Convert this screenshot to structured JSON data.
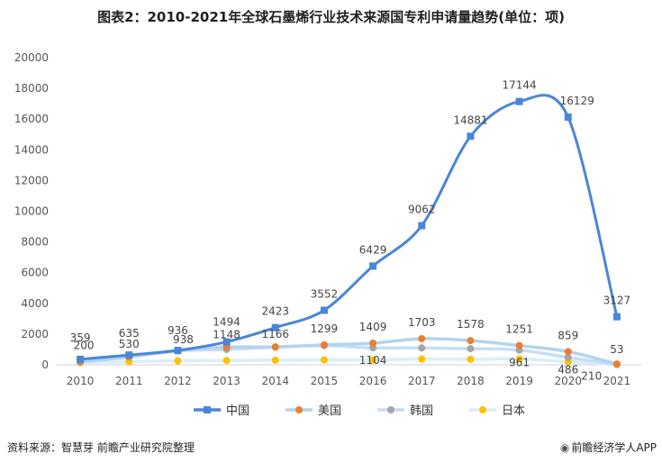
{
  "title": "图表2：2010-2021年全球石墨烯行业技术来源国专利申请量趋势(单位：项)",
  "source": "资料来源：智慧芽 前瞻产业研究院整理",
  "brand": "前瞻经济学人APP",
  "chart_data": {
    "type": "line",
    "title": "图表2：2010-2021年全球石墨烯行业技术来源国专利申请量趋势(单位：项)",
    "xlabel": "",
    "ylabel": "",
    "ylim": [
      0,
      20000
    ],
    "yticks": [
      "0",
      "2000",
      "4000",
      "6000",
      "8000",
      "10000",
      "12000",
      "14000",
      "16000",
      "18000",
      "20000"
    ],
    "categories": [
      "2010",
      "2011",
      "2012",
      "2013",
      "2014",
      "2015",
      "2016",
      "2017",
      "2018",
      "2019",
      "2020",
      "2021"
    ],
    "legend_position": "bottom",
    "grid": false,
    "series": [
      {
        "name": "中国",
        "color": "#4a86d8",
        "marker": "square",
        "values": [
          359,
          635,
          936,
          1494,
          2423,
          3552,
          6429,
          9062,
          14881,
          17144,
          16129,
          3127
        ],
        "labels": [
          "359",
          "635",
          "936",
          "1494",
          "2423",
          "3552",
          "6429",
          "9062",
          "14881",
          "17144",
          "16129",
          "3127"
        ]
      },
      {
        "name": "美国",
        "color": "#ed7d31",
        "marker": "circle",
        "values": [
          200,
          530,
          938,
          1148,
          1166,
          1299,
          1409,
          1703,
          1578,
          1251,
          859,
          53
        ],
        "labels": [
          "200",
          "530",
          "938",
          "1148",
          "1166",
          "1299",
          "1409",
          "1703",
          "1578",
          "1251",
          "859",
          "53"
        ]
      },
      {
        "name": "韩国",
        "color": "#a5a5a5",
        "marker": "circle",
        "values": [
          180,
          500,
          900,
          1000,
          1150,
          1250,
          1104,
          1100,
          1050,
          961,
          486,
          30
        ],
        "labels": [
          "",
          "",
          "",
          "",
          "",
          "",
          "1104",
          "",
          "",
          "961",
          "486",
          ""
        ]
      },
      {
        "name": "日本",
        "color": "#ffc000",
        "marker": "circle",
        "values": [
          150,
          200,
          260,
          280,
          300,
          320,
          320,
          380,
          360,
          380,
          210,
          20
        ],
        "labels": [
          "",
          "",
          "",
          "",
          "",
          "",
          "",
          "",
          "",
          "",
          "210",
          ""
        ]
      }
    ]
  }
}
